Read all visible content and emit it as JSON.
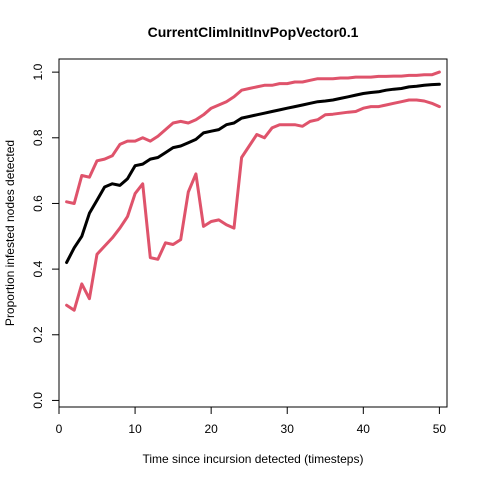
{
  "chart_data": {
    "type": "line",
    "title": "CurrentClimInitInvPopVector0.1",
    "xlabel": "Time since incursion detected (timesteps)",
    "ylabel": "Proportion infested nodes detected",
    "xlim": [
      0,
      51
    ],
    "ylim": [
      -0.02,
      1.04
    ],
    "xticks": [
      0,
      10,
      20,
      30,
      40,
      50
    ],
    "xtick_labels": [
      "0",
      "10",
      "20",
      "30",
      "40",
      "50"
    ],
    "yticks": [
      0.0,
      0.2,
      0.4,
      0.6,
      0.8,
      1.0
    ],
    "ytick_labels": [
      "0.0",
      "0.2",
      "0.4",
      "0.6",
      "0.8",
      "1.0"
    ],
    "grid": false,
    "legend": "none",
    "x": [
      1,
      2,
      3,
      4,
      5,
      6,
      7,
      8,
      9,
      10,
      11,
      12,
      13,
      14,
      15,
      16,
      17,
      18,
      19,
      20,
      21,
      22,
      23,
      24,
      25,
      26,
      27,
      28,
      29,
      30,
      31,
      32,
      33,
      34,
      35,
      36,
      37,
      38,
      39,
      40,
      41,
      42,
      43,
      44,
      45,
      46,
      47,
      48,
      49,
      50
    ],
    "series": [
      {
        "color": "#DF536B",
        "values": [
          0.605,
          0.6,
          0.685,
          0.68,
          0.73,
          0.735,
          0.745,
          0.78,
          0.79,
          0.79,
          0.8,
          0.79,
          0.805,
          0.825,
          0.845,
          0.85,
          0.845,
          0.855,
          0.87,
          0.89,
          0.9,
          0.91,
          0.925,
          0.945,
          0.95,
          0.955,
          0.96,
          0.96,
          0.965,
          0.965,
          0.97,
          0.97,
          0.975,
          0.98,
          0.98,
          0.98,
          0.982,
          0.982,
          0.985,
          0.985,
          0.985,
          0.987,
          0.987,
          0.988,
          0.988,
          0.99,
          0.99,
          0.992,
          0.992,
          1.0
        ]
      },
      {
        "color": "#000000",
        "values": [
          0.42,
          0.465,
          0.5,
          0.57,
          0.61,
          0.65,
          0.66,
          0.655,
          0.675,
          0.715,
          0.72,
          0.735,
          0.74,
          0.755,
          0.77,
          0.775,
          0.785,
          0.795,
          0.815,
          0.82,
          0.825,
          0.84,
          0.845,
          0.86,
          0.865,
          0.87,
          0.875,
          0.88,
          0.885,
          0.89,
          0.895,
          0.9,
          0.905,
          0.91,
          0.912,
          0.915,
          0.92,
          0.925,
          0.93,
          0.935,
          0.938,
          0.94,
          0.945,
          0.948,
          0.95,
          0.955,
          0.957,
          0.96,
          0.962,
          0.963
        ]
      },
      {
        "color": "#DF536B",
        "values": [
          0.29,
          0.275,
          0.355,
          0.31,
          0.445,
          0.47,
          0.495,
          0.525,
          0.56,
          0.63,
          0.66,
          0.435,
          0.43,
          0.48,
          0.475,
          0.49,
          0.635,
          0.69,
          0.53,
          0.545,
          0.55,
          0.535,
          0.525,
          0.74,
          0.775,
          0.81,
          0.8,
          0.83,
          0.84,
          0.84,
          0.84,
          0.835,
          0.85,
          0.855,
          0.87,
          0.872,
          0.875,
          0.878,
          0.88,
          0.89,
          0.895,
          0.895,
          0.9,
          0.905,
          0.91,
          0.915,
          0.915,
          0.912,
          0.905,
          0.895
        ]
      }
    ]
  }
}
